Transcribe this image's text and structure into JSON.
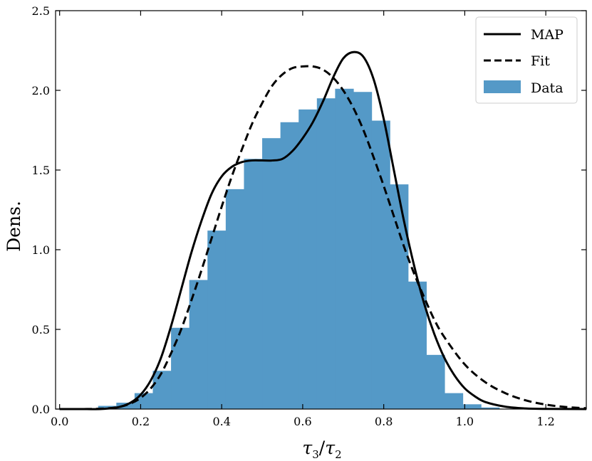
{
  "chart_data": {
    "type": "bar",
    "subtype": "histogram-with-density-curves",
    "title": "",
    "ylabel": "Dens.",
    "xlabel": {
      "tau": "τ",
      "sub_num": "3",
      "slash": "/",
      "sub_den": "2"
    },
    "xlim": [
      -0.01,
      1.3
    ],
    "ylim": [
      0.0,
      2.5
    ],
    "xticks": [
      0.0,
      0.2,
      0.4,
      0.6,
      0.8,
      1.0,
      1.2
    ],
    "xtick_labels": [
      "0.0",
      "0.2",
      "0.4",
      "0.6",
      "0.8",
      "1.0",
      "1.2"
    ],
    "yticks": [
      0.0,
      0.5,
      1.0,
      1.5,
      2.0,
      2.5
    ],
    "ytick_labels": [
      "0.0",
      "0.5",
      "1.0",
      "1.5",
      "2.0",
      "2.5"
    ],
    "legend_position": "top-right",
    "legend": [
      {
        "label": "MAP",
        "style": "solid"
      },
      {
        "label": "Fit",
        "style": "dashed"
      },
      {
        "label": "Data",
        "style": "patch"
      }
    ],
    "histogram": {
      "name": "Data",
      "color": "#5499c7",
      "bin_edges": [
        0.095,
        0.14,
        0.185,
        0.23,
        0.275,
        0.32,
        0.365,
        0.41,
        0.455,
        0.5,
        0.545,
        0.59,
        0.635,
        0.68,
        0.725,
        0.77,
        0.815,
        0.86,
        0.905,
        0.95,
        0.995,
        1.04,
        1.085
      ],
      "values": [
        0.02,
        0.04,
        0.1,
        0.24,
        0.51,
        0.81,
        1.12,
        1.38,
        1.57,
        1.7,
        1.8,
        1.88,
        1.95,
        2.01,
        1.99,
        1.81,
        1.41,
        0.8,
        0.34,
        0.1,
        0.03,
        0.01
      ]
    },
    "series": [
      {
        "name": "MAP",
        "style": "solid",
        "x": [
          0.0,
          0.05,
          0.1,
          0.125,
          0.15,
          0.175,
          0.2,
          0.225,
          0.25,
          0.275,
          0.3,
          0.325,
          0.35,
          0.375,
          0.4,
          0.425,
          0.45,
          0.475,
          0.5,
          0.525,
          0.55,
          0.575,
          0.6,
          0.625,
          0.65,
          0.675,
          0.7,
          0.725,
          0.75,
          0.775,
          0.8,
          0.825,
          0.85,
          0.875,
          0.9,
          0.925,
          0.95,
          0.975,
          1.0,
          1.025,
          1.05,
          1.1,
          1.15,
          1.2,
          1.3
        ],
        "y": [
          0.0,
          0.0,
          0.0,
          0.005,
          0.015,
          0.04,
          0.09,
          0.18,
          0.32,
          0.52,
          0.75,
          0.98,
          1.18,
          1.35,
          1.46,
          1.52,
          1.55,
          1.56,
          1.56,
          1.56,
          1.57,
          1.62,
          1.7,
          1.8,
          1.93,
          2.08,
          2.2,
          2.24,
          2.21,
          2.07,
          1.82,
          1.5,
          1.18,
          0.9,
          0.66,
          0.47,
          0.32,
          0.21,
          0.13,
          0.08,
          0.045,
          0.015,
          0.004,
          0.001,
          0.0
        ]
      },
      {
        "name": "Fit",
        "style": "dashed",
        "x": [
          0.0,
          0.05,
          0.1,
          0.125,
          0.15,
          0.175,
          0.2,
          0.225,
          0.25,
          0.275,
          0.3,
          0.325,
          0.35,
          0.375,
          0.4,
          0.425,
          0.45,
          0.475,
          0.5,
          0.525,
          0.55,
          0.575,
          0.6,
          0.625,
          0.65,
          0.675,
          0.7,
          0.725,
          0.75,
          0.775,
          0.8,
          0.825,
          0.85,
          0.875,
          0.9,
          0.925,
          0.95,
          1.0,
          1.05,
          1.1,
          1.15,
          1.2,
          1.25,
          1.3
        ],
        "y": [
          0.0,
          0.0,
          0.002,
          0.006,
          0.015,
          0.035,
          0.07,
          0.13,
          0.22,
          0.35,
          0.5,
          0.68,
          0.87,
          1.07,
          1.27,
          1.46,
          1.63,
          1.79,
          1.92,
          2.03,
          2.1,
          2.14,
          2.15,
          2.15,
          2.13,
          2.08,
          2.0,
          1.89,
          1.75,
          1.58,
          1.4,
          1.21,
          1.02,
          0.85,
          0.7,
          0.56,
          0.45,
          0.28,
          0.17,
          0.1,
          0.055,
          0.028,
          0.013,
          0.005
        ]
      }
    ]
  }
}
